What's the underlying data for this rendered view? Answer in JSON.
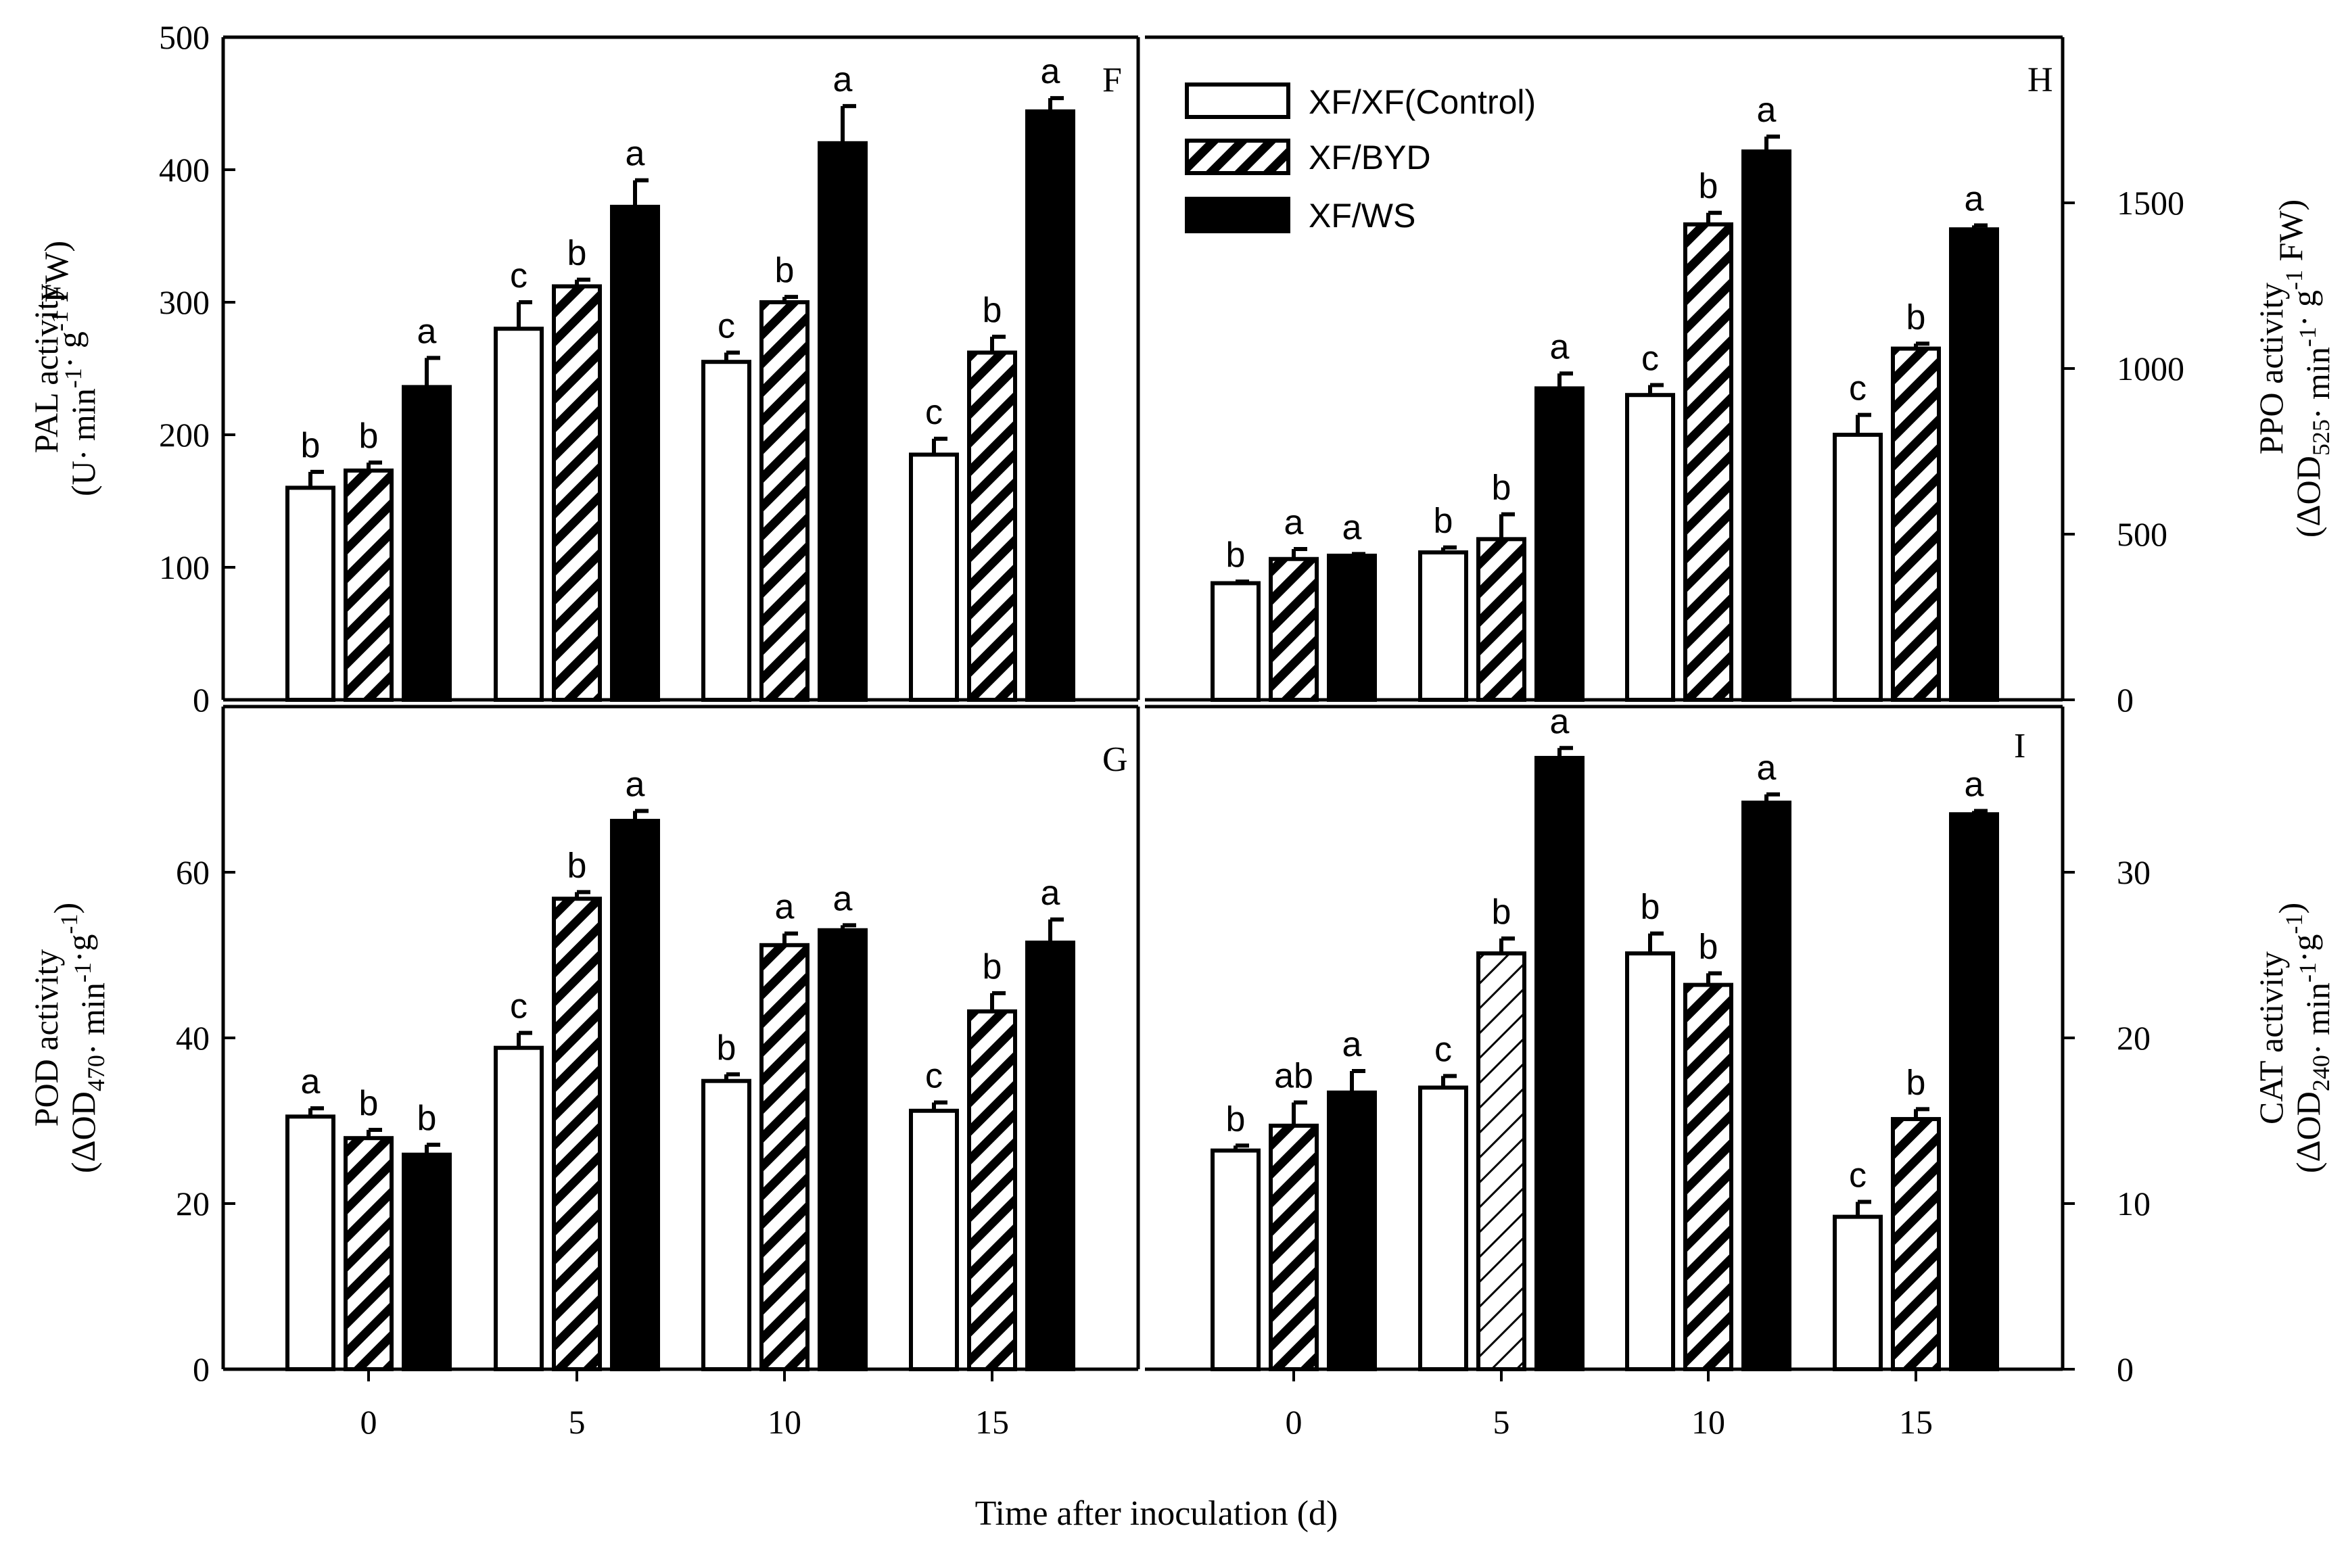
{
  "chart_data": {
    "type": "bar",
    "title": "",
    "shared_xlabel": "Time after inoculation (d)",
    "categories": [
      "0",
      "5",
      "10",
      "15"
    ],
    "legend": {
      "entries": [
        "XF/XF(Control)",
        "XF/BYD",
        "XF/WS"
      ],
      "styles": [
        "open",
        "hatched",
        "solid"
      ],
      "placement": "top, panel H"
    },
    "panels": [
      {
        "id": "F",
        "label": "F",
        "y_side": "left",
        "ylabel_line1": "PAL activity",
        "ylabel_line2": "(U· min-1· g-1 FW)",
        "ylabel_parts": [
          "(U· min",
          "-1",
          "· g",
          "-1",
          " FW)"
        ],
        "ylim": [
          0,
          500
        ],
        "yticks": [
          "0",
          "100",
          "200",
          "300",
          "400",
          "500"
        ],
        "series": [
          {
            "name": "XF/XF(Control)",
            "values": [
              160,
              280,
              255,
              185
            ],
            "errors": [
              12,
              20,
              7,
              12
            ],
            "letters": [
              "b",
              "c",
              "c",
              "c"
            ]
          },
          {
            "name": "XF/BYD",
            "values": [
              173,
              312,
              300,
              262
            ],
            "errors": [
              6,
              5,
              4,
              12
            ],
            "letters": [
              "b",
              "b",
              "b",
              "b"
            ]
          },
          {
            "name": "XF/WS",
            "values": [
              236,
              372,
              420,
              444
            ],
            "errors": [
              22,
              20,
              28,
              10
            ],
            "letters": [
              "a",
              "a",
              "a",
              "a"
            ]
          }
        ]
      },
      {
        "id": "H",
        "label": "H",
        "y_side": "right",
        "ylabel_line1": "PPO activity",
        "ylabel_line2": "(ΔOD525· min-1· g-1 FW)",
        "ylabel_parts": [
          "(ΔOD",
          "525",
          "· min",
          "-1",
          "· g",
          "-1",
          " FW)"
        ],
        "ylim": [
          0,
          2000
        ],
        "yticks": [
          "0",
          "500",
          "1000",
          "1500"
        ],
        "series": [
          {
            "name": "XF/XF(Control)",
            "values": [
              352,
              445,
              920,
              800
            ],
            "errors": [
              5,
              15,
              30,
              60
            ],
            "letters": [
              "b",
              "b",
              "c",
              "c"
            ]
          },
          {
            "name": "XF/BYD",
            "values": [
              425,
              485,
              1435,
              1060
            ],
            "errors": [
              30,
              75,
              35,
              15
            ],
            "letters": [
              "a",
              "b",
              "b",
              "b"
            ]
          },
          {
            "name": "XF/WS",
            "values": [
              435,
              940,
              1655,
              1420
            ],
            "errors": [
              5,
              45,
              45,
              12
            ],
            "letters": [
              "a",
              "a",
              "a",
              "a"
            ]
          }
        ]
      },
      {
        "id": "G",
        "label": "G",
        "y_side": "left",
        "ylabel_line1": "POD activity",
        "ylabel_line2": "(ΔOD470· min-1·g-1)",
        "ylabel_parts": [
          "(ΔOD",
          "470",
          "· min",
          "-1",
          "·g",
          "-1",
          ")"
        ],
        "ylim": [
          0,
          80
        ],
        "yticks": [
          "0",
          "20",
          "40",
          "60"
        ],
        "series": [
          {
            "name": "XF/XF(Control)",
            "values": [
              30.5,
              38.8,
              34.8,
              31.2
            ],
            "errors": [
              1.0,
              1.8,
              0.8,
              1.0
            ],
            "letters": [
              "a",
              "c",
              "b",
              "c"
            ]
          },
          {
            "name": "XF/BYD",
            "values": [
              27.9,
              56.8,
              51.2,
              43.2
            ],
            "errors": [
              1.0,
              0.8,
              1.4,
              2.2
            ],
            "letters": [
              "b",
              "b",
              "a",
              "b"
            ]
          },
          {
            "name": "XF/WS",
            "values": [
              25.9,
              66.2,
              53.0,
              51.5
            ],
            "errors": [
              1.2,
              1.2,
              0.6,
              2.8
            ],
            "letters": [
              "b",
              "a",
              "a",
              "a"
            ]
          }
        ]
      },
      {
        "id": "I",
        "label": "I",
        "y_side": "right",
        "ylabel_line1": "CAT activity",
        "ylabel_line2": "(ΔOD240· min-1·g-1)",
        "ylabel_parts": [
          "(ΔOD",
          "240",
          "· min",
          "-1",
          "·g",
          "-1",
          ")"
        ],
        "ylim": [
          0,
          40
        ],
        "yticks": [
          "0",
          "10",
          "20",
          "30"
        ],
        "series": [
          {
            "name": "XF/XF(Control)",
            "values": [
              13.2,
              17.0,
              25.1,
              9.2
            ],
            "errors": [
              0.3,
              0.7,
              1.2,
              0.9
            ],
            "letters": [
              "b",
              "c",
              "b",
              "c"
            ]
          },
          {
            "name": "XF/BYD",
            "values": [
              14.7,
              25.1,
              23.2,
              15.1
            ],
            "errors": [
              1.4,
              0.9,
              0.7,
              0.6
            ],
            "letters": [
              "ab",
              "b",
              "b",
              "b"
            ]
          },
          {
            "name": "XF/WS",
            "values": [
              16.7,
              36.9,
              34.2,
              33.5
            ],
            "errors": [
              1.3,
              0.6,
              0.5,
              0.2
            ],
            "letters": [
              "a",
              "a",
              "a",
              "a"
            ]
          }
        ]
      }
    ]
  }
}
